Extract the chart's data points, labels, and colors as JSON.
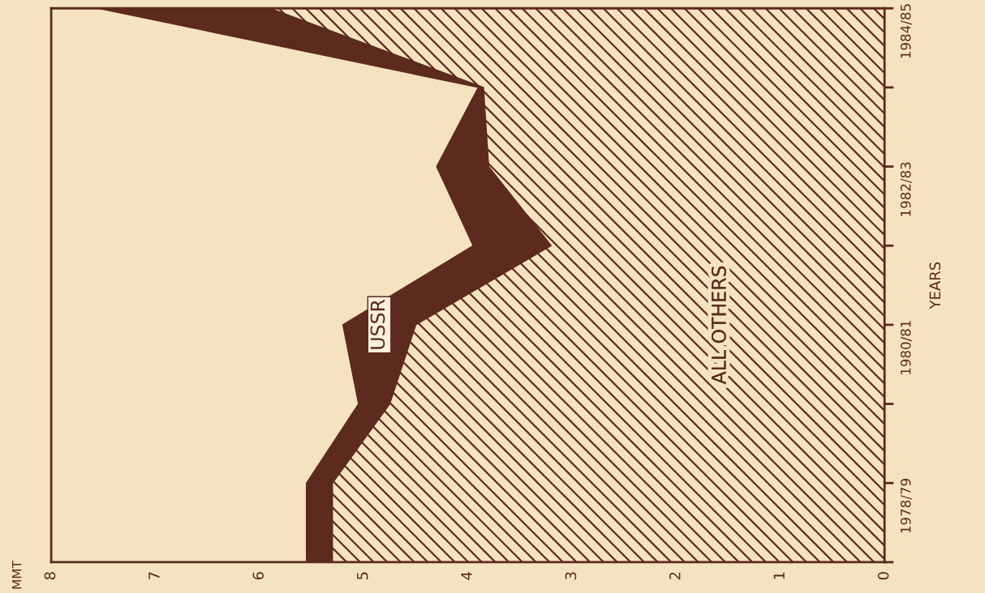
{
  "chart_data": {
    "type": "area",
    "orientation": "horizontal",
    "stacked": true,
    "categories": [
      "1984/85",
      null,
      "1982/83",
      null,
      "1980/81",
      null,
      "1978/79",
      null
    ],
    "series": [
      {
        "name": "ALL OTHERS",
        "color": "#5c2a1e",
        "values": [
          5.9,
          3.85,
          3.8,
          3.2,
          4.5,
          4.75,
          5.3,
          5.3
        ]
      },
      {
        "name": "USSR",
        "color": "#5c2a1e",
        "values": [
          1.65,
          0.05,
          0.5,
          0.75,
          0.7,
          0.3,
          0.25,
          0.25
        ]
      }
    ],
    "ylabel": "YEARS",
    "annotations": [
      "MMT"
    ],
    "xlim": [
      8,
      0
    ],
    "xticks": [
      8,
      7,
      6,
      5,
      4,
      3,
      2,
      1,
      0
    ],
    "grid": false,
    "legend": false
  }
}
